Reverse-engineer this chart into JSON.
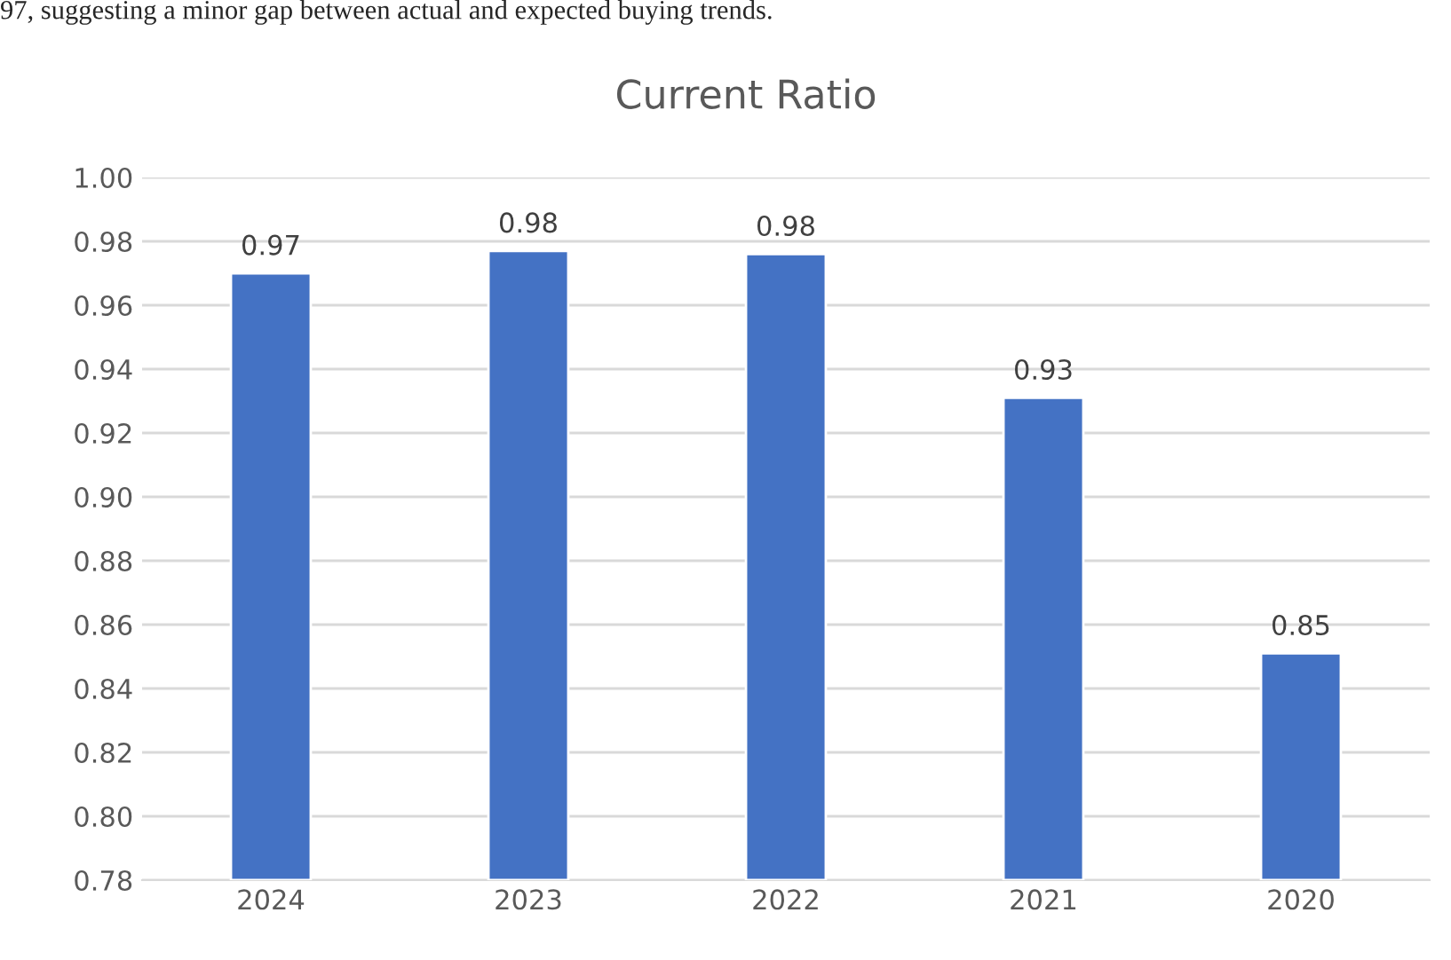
{
  "chart_data": {
    "type": "bar",
    "title": "Current Ratio",
    "annotations": [
      "97, suggesting a minor gap between actual and expected buying trends."
    ],
    "categories": [
      "2024",
      "2023",
      "2022",
      "2021",
      "2020"
    ],
    "values": [
      0.97,
      0.977,
      0.976,
      0.931,
      0.851
    ],
    "value_labels": [
      "0.97",
      "0.98",
      "0.98",
      "0.93",
      "0.85"
    ],
    "color": "#4472c4",
    "ylim": [
      0.78,
      1.0
    ],
    "yticks": [
      {
        "value": 0.78,
        "label": "0.78"
      },
      {
        "value": 0.8,
        "label": "0.80"
      },
      {
        "value": 0.82,
        "label": "0.82"
      },
      {
        "value": 0.84,
        "label": "0.84"
      },
      {
        "value": 0.86,
        "label": "0.86"
      },
      {
        "value": 0.88,
        "label": "0.88"
      },
      {
        "value": 0.9,
        "label": "0.90"
      },
      {
        "value": 0.92,
        "label": "0.92"
      },
      {
        "value": 0.94,
        "label": "0.94"
      },
      {
        "value": 0.96,
        "label": "0.96"
      },
      {
        "value": 0.98,
        "label": "0.98"
      },
      {
        "value": 1.0,
        "label": "1.00"
      }
    ],
    "grid": "y",
    "legend": false
  }
}
